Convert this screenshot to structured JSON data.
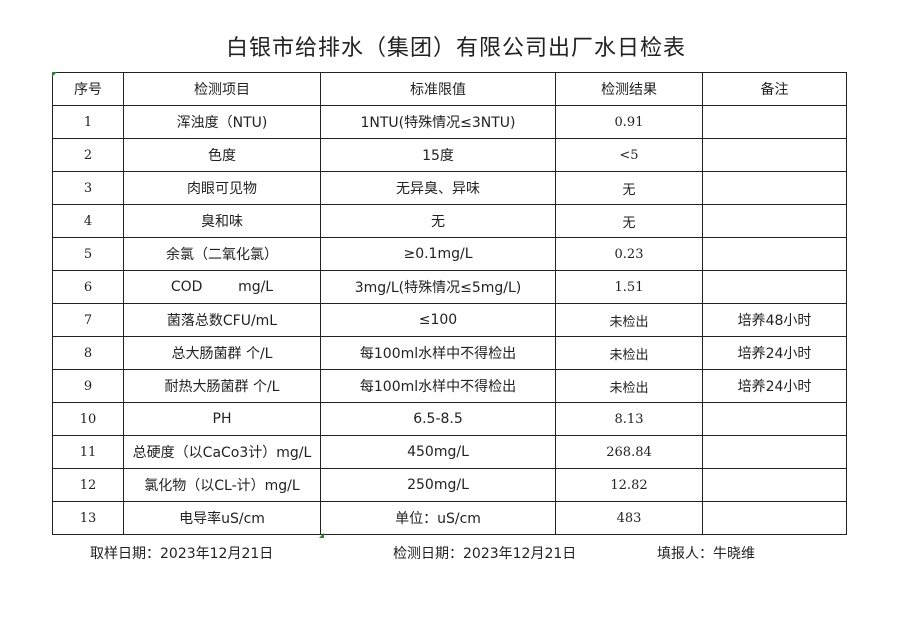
{
  "title": "白银市给排水（集团）有限公司出厂水日检表",
  "table": {
    "headers": [
      "序号",
      "检测项目",
      "标准限值",
      "检测结果",
      "备注"
    ],
    "rows": [
      [
        "1",
        "浑浊度（NTU)",
        "1NTU(特殊情况≤3NTU)",
        "0.91",
        ""
      ],
      [
        "2",
        "色度",
        "15度",
        "<5",
        ""
      ],
      [
        "3",
        "肉眼可见物",
        "无异臭、异味",
        "无",
        ""
      ],
      [
        "4",
        "臭和味",
        "无",
        "无",
        ""
      ],
      [
        "5",
        "余氯（二氧化氯）",
        "≥0.1mg/L",
        "0.23",
        ""
      ],
      [
        "6",
        "COD        mg/L",
        "3mg/L(特殊情况≤5mg/L)",
        "1.51",
        ""
      ],
      [
        "7",
        "菌落总数CFU/mL",
        "≤100",
        "未检出",
        "培养48小时"
      ],
      [
        "8",
        "总大肠菌群 个/L",
        "每100ml水样中不得检出",
        "未检出",
        "培养24小时"
      ],
      [
        "9",
        "耐热大肠菌群 个/L",
        "每100ml水样中不得检出",
        "未检出",
        "培养24小时"
      ],
      [
        "10",
        "PH",
        "6.5-8.5",
        "8.13",
        ""
      ],
      [
        "11",
        "总硬度（以CaCo3计）mg/L",
        "450mg/L",
        "268.84",
        ""
      ],
      [
        "12",
        "氯化物（以CL-计）mg/L",
        "250mg/L",
        "12.82",
        ""
      ],
      [
        "13",
        "电导率uS/cm",
        "单位：uS/cm",
        "483",
        ""
      ]
    ]
  },
  "footer": {
    "sample_date": "取样日期：2023年12月21日",
    "test_date": "检测日期：2023年12月21日",
    "reporter": "填报人：牛晓维"
  },
  "colors": {
    "marker": "#2e7d32",
    "border": "#222222"
  }
}
